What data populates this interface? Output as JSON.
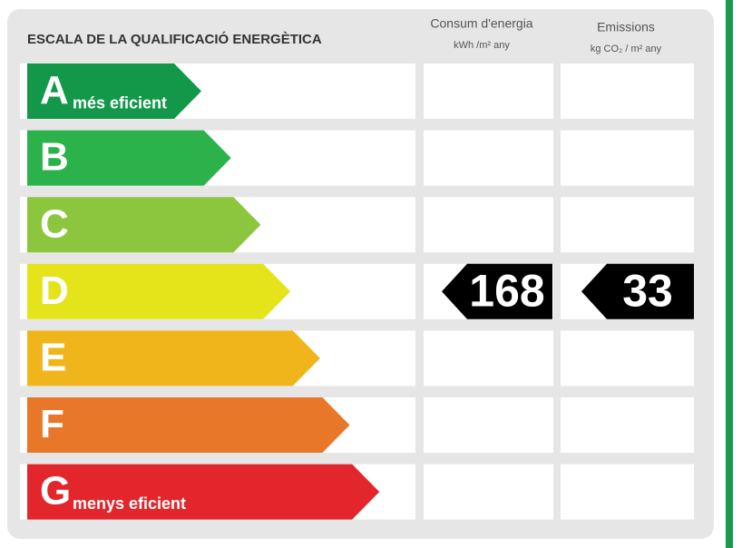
{
  "header": {
    "title": "ESCALA DE LA QUALIFICACIÓ ENERGÈTICA"
  },
  "columns": [
    {
      "title": "Consum d'energia",
      "unit": "kWh /m² any"
    },
    {
      "title": "Emissions",
      "unit": "kg CO₂ / m² any"
    }
  ],
  "rows": [
    {
      "letter": "A",
      "note": "més eficient",
      "color": "#13984a"
    },
    {
      "letter": "B",
      "color": "#2bb24b"
    },
    {
      "letter": "C",
      "color": "#8cc63f"
    },
    {
      "letter": "D",
      "color": "#e5e41b",
      "energy": 168,
      "emissions": 33
    },
    {
      "letter": "E",
      "color": "#f1b51c"
    },
    {
      "letter": "F",
      "color": "#e8772a"
    },
    {
      "letter": "G",
      "note": "menys eficient",
      "color": "#e2262b"
    }
  ]
}
